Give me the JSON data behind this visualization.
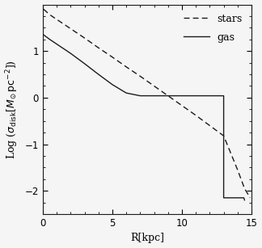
{
  "title": "",
  "xlabel": "R[kpc]",
  "xlim": [
    0,
    15
  ],
  "ylim": [
    -2.5,
    2.0
  ],
  "yticks": [
    -2,
    -1,
    0,
    1
  ],
  "xticks": [
    0,
    5,
    10,
    15
  ],
  "stars_x": [
    0.05,
    0.5,
    1,
    2,
    3,
    4,
    5,
    6,
    7,
    8,
    9,
    10,
    11,
    12,
    13,
    14,
    14.5,
    14.9
  ],
  "stars_y": [
    1.9,
    1.78,
    1.68,
    1.48,
    1.28,
    1.07,
    0.87,
    0.66,
    0.46,
    0.25,
    0.04,
    -0.17,
    -0.38,
    -0.6,
    -0.82,
    -1.55,
    -1.95,
    -2.15
  ],
  "gas_x": [
    0.05,
    0.5,
    1,
    2,
    3,
    4,
    5,
    6,
    7,
    8,
    9,
    10,
    11,
    12,
    12.9,
    13.0,
    13.0,
    14.45,
    14.5
  ],
  "gas_y": [
    1.35,
    1.25,
    1.15,
    0.95,
    0.73,
    0.5,
    0.28,
    0.1,
    0.04,
    0.04,
    0.04,
    0.04,
    0.04,
    0.04,
    0.04,
    0.04,
    -2.15,
    -2.15,
    -2.2
  ],
  "line_color": "#1a1a1a",
  "bg_color": "#f5f5f5",
  "legend_fontsize": 9,
  "axis_fontsize": 9,
  "tick_fontsize": 8.5
}
